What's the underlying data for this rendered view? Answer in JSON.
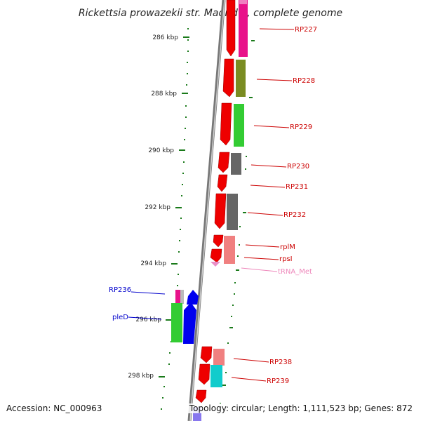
{
  "title": "Rickettsia prowazekii str. Madrid E, complete genome",
  "footer": {
    "accession": "Accession: NC_000963",
    "summary": "Topology: circular; Length: 1,111,523 bp; Genes: 872"
  },
  "scale_ticks": [
    "286 kbp",
    "288 kbp",
    "290 kbp",
    "292 kbp",
    "294 kbp",
    "296 kbp",
    "298 kbp"
  ],
  "genes": [
    {
      "name": "RP227",
      "strand": "right",
      "color": "#cc0000"
    },
    {
      "name": "RP228",
      "strand": "right",
      "color": "#cc0000"
    },
    {
      "name": "RP229",
      "strand": "right",
      "color": "#cc0000"
    },
    {
      "name": "RP230",
      "strand": "right",
      "color": "#cc0000"
    },
    {
      "name": "RP231",
      "strand": "right",
      "color": "#cc0000"
    },
    {
      "name": "RP232",
      "strand": "right",
      "color": "#cc0000"
    },
    {
      "name": "rplM",
      "strand": "right",
      "color": "#cc0000"
    },
    {
      "name": "rpsI",
      "strand": "right",
      "color": "#cc0000"
    },
    {
      "name": "tRNA_Met",
      "strand": "right",
      "color": "#f08ab8"
    },
    {
      "name": "RP236",
      "strand": "left",
      "color": "#1010aa"
    },
    {
      "name": "pleD",
      "strand": "left",
      "color": "#1010aa"
    },
    {
      "name": "RP238",
      "strand": "right",
      "color": "#cc0000"
    },
    {
      "name": "RP239",
      "strand": "right",
      "color": "#cc0000"
    }
  ]
}
